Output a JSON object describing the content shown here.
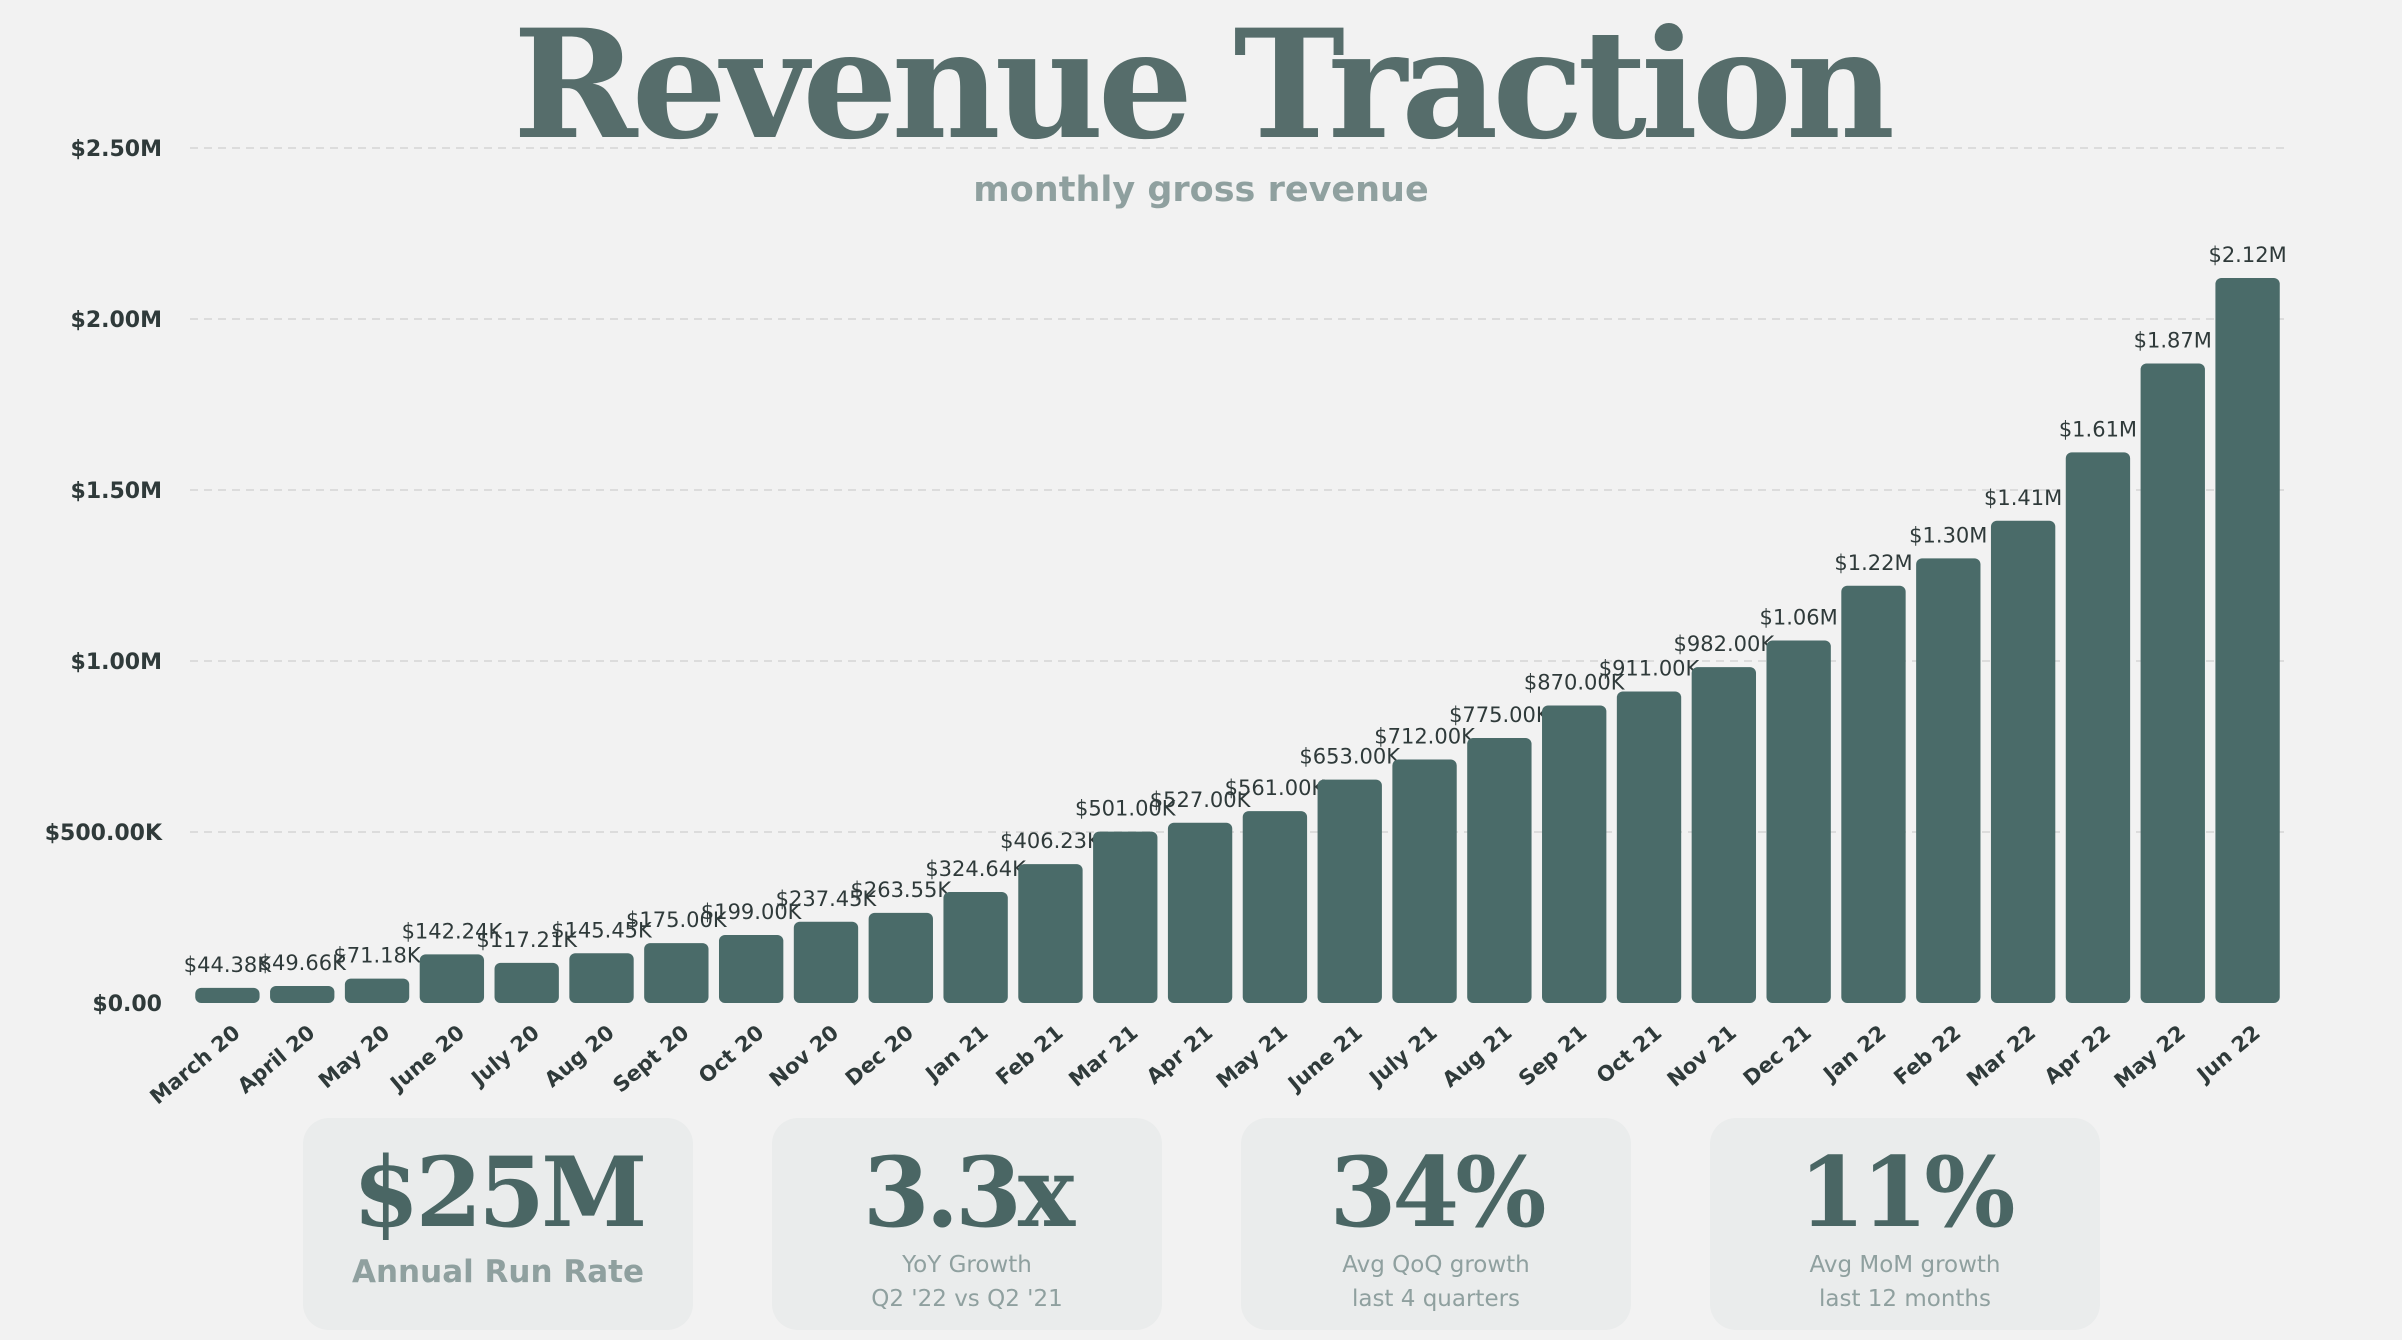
{
  "header": {
    "title": "Revenue Traction",
    "subtitle": "monthly gross revenue"
  },
  "colors": {
    "bar": "#4a6b69",
    "gridline": "#dcdcdc",
    "background": "#f2f2f2"
  },
  "chart_data": {
    "type": "bar",
    "title": "Revenue Traction",
    "subtitle": "monthly gross revenue",
    "categories": [
      "March 20",
      "April 20",
      "May 20",
      "June 20",
      "July 20",
      "Aug 20",
      "Sept 20",
      "Oct 20",
      "Nov 20",
      "Dec 20",
      "Jan 21",
      "Feb 21",
      "Mar 21",
      "Apr 21",
      "May 21",
      "June 21",
      "July 21",
      "Aug 21",
      "Sep 21",
      "Oct 21",
      "Nov 21",
      "Dec 21",
      "Jan 22",
      "Feb 22",
      "Mar 22",
      "Apr 22",
      "May 22",
      "Jun 22"
    ],
    "values": [
      44380,
      49660,
      71180,
      142240,
      117210,
      145450,
      175000,
      199000,
      237450,
      263550,
      324640,
      406230,
      501000,
      527000,
      561000,
      653000,
      712000,
      775000,
      870000,
      911000,
      982000,
      1060000,
      1220000,
      1300000,
      1410000,
      1610000,
      1870000,
      2120000
    ],
    "data_labels": [
      "$44.38K",
      "$49.66K",
      "$71.18K",
      "$142.24K",
      "$117.21K",
      "$145.45K",
      "$175.00K",
      "$199.00K",
      "$237.45K",
      "$263.55K",
      "$324.64K",
      "$406.23K",
      "$501.00K",
      "$527.00K",
      "$561.00K",
      "$653.00K",
      "$712.00K",
      "$775.00K",
      "$870.00K",
      "$911.00K",
      "$982.00K",
      "$1.06M",
      "$1.22M",
      "$1.30M",
      "$1.41M",
      "$1.61M",
      "$1.87M",
      "$2.12M"
    ],
    "y_ticks": [
      0,
      500000,
      1000000,
      1500000,
      2000000,
      2500000
    ],
    "y_tick_labels": [
      "$0.00",
      "$500.00K",
      "$1.00M",
      "$1.50M",
      "$2.00M",
      "$2.50M"
    ],
    "ylim": [
      0,
      2500000
    ],
    "grid": true
  },
  "metrics": [
    {
      "value": "$25M",
      "label": "Annual Run Rate",
      "sub": ""
    },
    {
      "value": "3.3x",
      "label": "YoY Growth",
      "sub": "Q2 '22 vs Q2 '21"
    },
    {
      "value": "34%",
      "label": "Avg QoQ growth",
      "sub": "last 4 quarters"
    },
    {
      "value": "11%",
      "label": "Avg MoM growth",
      "sub": "last 12 months"
    }
  ]
}
